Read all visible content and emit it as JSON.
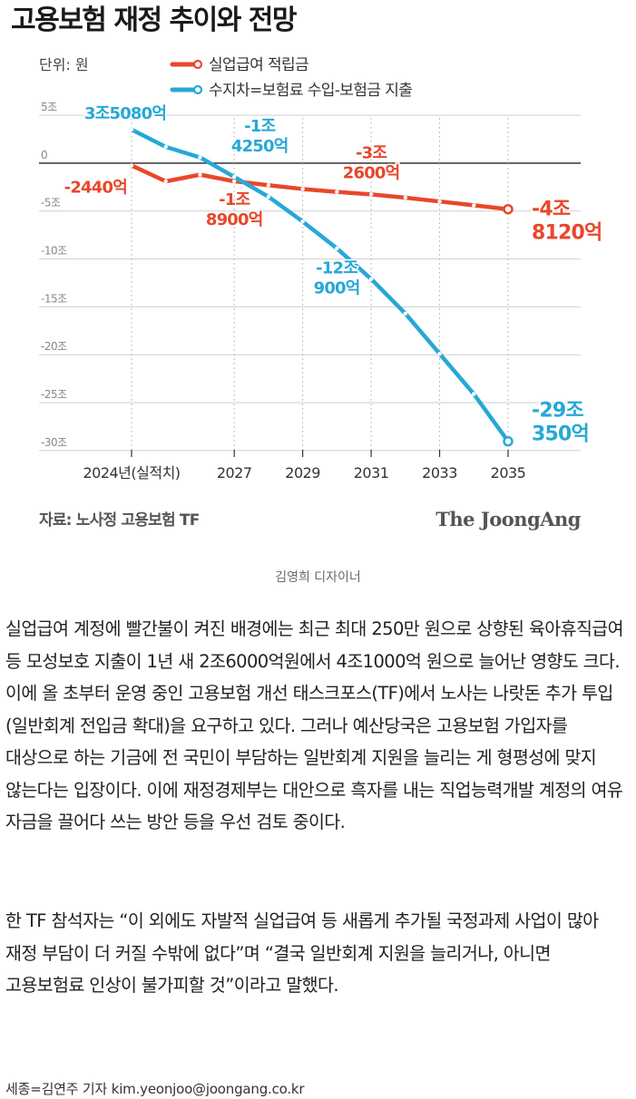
{
  "figure": {
    "source": "자료: 노사정 고용보험 TF",
    "logo": "The JoongAng"
  },
  "caption_credit": "김영희 디자이너",
  "article": {
    "paragraphs": [
      "실업급여 계정에 빨간불이 켜진 배경에는 최근 최대 250만 원으로 상향된 육아휴직급여 등 모성보호 지출이 1년 새 2조6000억원에서 4조1000억 원으로 늘어난 영향도 크다. 이에 올 초부터 운영 중인 고용보험 개선 태스크포스(TF)에서 노사는 나랏돈 추가 투입(일반회계 전입금 확대)을 요구하고 있다. 그러나 예산당국은 고용보험 가입자를 대상으로 하는 기금에 전 국민이 부담하는 일반회계 지원을 늘리는 게 형평성에 맞지 않는다는 입장이다. 이에 재정경제부는 대안으로 흑자를 내는 직업능력개발 계정의 여유 자금을 끌어다 쓰는 방안 등을 우선 검토 중이다.",
      "한 TF 참석자는 “이 외에도 자발적 실업급여 등 새롭게 추가될 국정과제 사업이 많아 재정 부담이 더 커질 수밖에 없다”며 “결국 일반회계 지원을 늘리거나, 아니면 고용보험료 인상이 불가피할 것”이라고 말했다."
    ],
    "byline": "세종=김연주 기자 kim.yeonjoo@joongang.co.kr"
  },
  "chart_data": {
    "type": "line",
    "title": "고용보험 재정 추이와 전망",
    "unit_label": "단위: 원",
    "x": [
      2024,
      2025,
      2026,
      2027,
      2028,
      2029,
      2030,
      2031,
      2032,
      2033,
      2034,
      2035
    ],
    "x_ticks": [
      2024,
      2027,
      2029,
      2031,
      2033,
      2035
    ],
    "x_tick_labels": [
      "2024년(실적치)",
      "2027",
      "2029",
      "2031",
      "2033",
      "2035"
    ],
    "y_ticks": [
      5,
      0,
      -5,
      -10,
      -15,
      -20,
      -25,
      -30
    ],
    "y_tick_labels": [
      "5조",
      "0",
      "-5조",
      "-10조",
      "-15조",
      "-20조",
      "-25조",
      "-30조"
    ],
    "ylim": [
      -30.3,
      5.2
    ],
    "grid": true,
    "legend_position": "top-left",
    "series": [
      {
        "name": "실업급여 적립금",
        "color": "#e8472a",
        "values": [
          -0.24,
          -1.9,
          -1.2,
          -1.89,
          -2.3,
          -2.7,
          -3.0,
          -3.26,
          -3.6,
          -4.0,
          -4.4,
          -4.81
        ],
        "labels": [
          {
            "index": 0,
            "lines": [
              "-2440억"
            ],
            "anchor": "end"
          },
          {
            "index": 3,
            "lines": [
              "-1조",
              "8900억"
            ],
            "anchor": "middle"
          },
          {
            "index": 7,
            "lines": [
              "-3조",
              "2600억"
            ],
            "anchor": "middle"
          },
          {
            "index": 11,
            "lines": [
              "-4조",
              "8120억"
            ],
            "anchor": "start"
          }
        ]
      },
      {
        "name": "수지차=보험료 수입-보험금 지출",
        "color": "#27a8d6",
        "values": [
          3.51,
          1.7,
          0.6,
          -1.43,
          -3.5,
          -6.1,
          -8.9,
          -12.09,
          -15.7,
          -19.9,
          -24.1,
          -29.04
        ],
        "labels": [
          {
            "index": 0,
            "lines": [
              "3조5080억"
            ],
            "anchor": "start"
          },
          {
            "index": 3,
            "lines": [
              "-1조",
              "4250억"
            ],
            "anchor": "middle"
          },
          {
            "index": 7,
            "lines": [
              "-12조",
              "900억"
            ],
            "anchor": "middle"
          },
          {
            "index": 11,
            "lines": [
              "-29조",
              "350억"
            ],
            "anchor": "start"
          }
        ]
      }
    ]
  }
}
